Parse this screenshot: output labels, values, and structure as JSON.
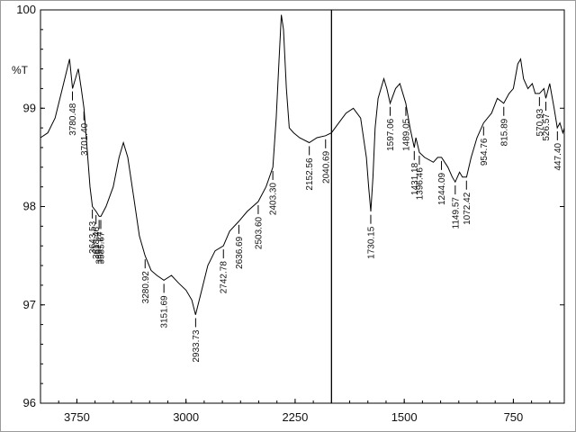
{
  "chart_data": {
    "type": "line",
    "title": "",
    "xlabel": "",
    "ylabel": "%T",
    "xlim": [
      4000,
      400
    ],
    "ylim": [
      96,
      100
    ],
    "x_ticks": [
      3750,
      3000,
      2250,
      1500,
      750
    ],
    "x_tick_labels": [
      "3750",
      "3000",
      "2250",
      "1500",
      "750"
    ],
    "y_ticks": [
      96,
      97,
      98,
      99,
      100
    ],
    "y_tick_labels": [
      "96",
      "97",
      "98",
      "99",
      "100"
    ],
    "grid": false,
    "cursor_x": 2000,
    "series": [
      {
        "values": [
          [
            4000,
            98.7
          ],
          [
            3950,
            98.75
          ],
          [
            3900,
            98.9
          ],
          [
            3850,
            99.2
          ],
          [
            3800,
            99.5
          ],
          [
            3780,
            99.2
          ],
          [
            3760,
            99.3
          ],
          [
            3740,
            99.4
          ],
          [
            3720,
            99.2
          ],
          [
            3701,
            99.0
          ],
          [
            3680,
            98.6
          ],
          [
            3660,
            98.2
          ],
          [
            3643,
            98.0
          ],
          [
            3618,
            97.95
          ],
          [
            3597,
            97.9
          ],
          [
            3585,
            97.9
          ],
          [
            3550,
            98.0
          ],
          [
            3500,
            98.2
          ],
          [
            3460,
            98.5
          ],
          [
            3430,
            98.65
          ],
          [
            3400,
            98.5
          ],
          [
            3360,
            98.1
          ],
          [
            3320,
            97.7
          ],
          [
            3281,
            97.5
          ],
          [
            3240,
            97.35
          ],
          [
            3200,
            97.3
          ],
          [
            3152,
            97.25
          ],
          [
            3100,
            97.3
          ],
          [
            3050,
            97.22
          ],
          [
            3000,
            97.15
          ],
          [
            2960,
            97.05
          ],
          [
            2934,
            96.9
          ],
          [
            2900,
            97.1
          ],
          [
            2850,
            97.4
          ],
          [
            2800,
            97.55
          ],
          [
            2743,
            97.6
          ],
          [
            2700,
            97.75
          ],
          [
            2637,
            97.85
          ],
          [
            2580,
            97.95
          ],
          [
            2504,
            98.05
          ],
          [
            2450,
            98.2
          ],
          [
            2403,
            98.4
          ],
          [
            2380,
            98.9
          ],
          [
            2360,
            99.5
          ],
          [
            2345,
            99.95
          ],
          [
            2330,
            99.8
          ],
          [
            2310,
            99.2
          ],
          [
            2290,
            98.8
          ],
          [
            2260,
            98.75
          ],
          [
            2220,
            98.7
          ],
          [
            2153,
            98.65
          ],
          [
            2100,
            98.7
          ],
          [
            2041,
            98.72
          ],
          [
            2000,
            98.75
          ],
          [
            1950,
            98.85
          ],
          [
            1900,
            98.95
          ],
          [
            1850,
            99.0
          ],
          [
            1800,
            98.9
          ],
          [
            1760,
            98.5
          ],
          [
            1745,
            98.2
          ],
          [
            1730,
            97.95
          ],
          [
            1715,
            98.3
          ],
          [
            1700,
            98.8
          ],
          [
            1680,
            99.1
          ],
          [
            1660,
            99.2
          ],
          [
            1640,
            99.3
          ],
          [
            1620,
            99.2
          ],
          [
            1597,
            99.05
          ],
          [
            1560,
            99.2
          ],
          [
            1530,
            99.25
          ],
          [
            1489,
            99.05
          ],
          [
            1460,
            98.8
          ],
          [
            1431,
            98.6
          ],
          [
            1420,
            98.7
          ],
          [
            1396,
            98.55
          ],
          [
            1360,
            98.5
          ],
          [
            1300,
            98.45
          ],
          [
            1270,
            98.5
          ],
          [
            1244,
            98.5
          ],
          [
            1200,
            98.4
          ],
          [
            1170,
            98.3
          ],
          [
            1150,
            98.25
          ],
          [
            1120,
            98.35
          ],
          [
            1100,
            98.3
          ],
          [
            1072,
            98.3
          ],
          [
            1040,
            98.5
          ],
          [
            1000,
            98.7
          ],
          [
            955,
            98.85
          ],
          [
            900,
            98.95
          ],
          [
            860,
            99.1
          ],
          [
            816,
            99.05
          ],
          [
            780,
            99.15
          ],
          [
            750,
            99.2
          ],
          [
            720,
            99.45
          ],
          [
            700,
            99.5
          ],
          [
            680,
            99.3
          ],
          [
            650,
            99.2
          ],
          [
            620,
            99.25
          ],
          [
            600,
            99.15
          ],
          [
            571,
            99.15
          ],
          [
            540,
            99.2
          ],
          [
            527,
            99.1
          ],
          [
            500,
            99.25
          ],
          [
            470,
            99.0
          ],
          [
            448,
            98.8
          ],
          [
            430,
            98.85
          ],
          [
            410,
            98.75
          ],
          [
            400,
            98.8
          ]
        ]
      }
    ],
    "annotations": [
      {
        "x": 3780.48,
        "label": "3780.48"
      },
      {
        "x": 3701.4,
        "label": "3701.40"
      },
      {
        "x": 3643.53,
        "label": "3643.53"
      },
      {
        "x": 3618.46,
        "label": "3618.46"
      },
      {
        "x": 3597.24,
        "label": "3597.24"
      },
      {
        "x": 3585.67,
        "label": "3585.67"
      },
      {
        "x": 3280.92,
        "label": "3280.92"
      },
      {
        "x": 3151.69,
        "label": "3151.69"
      },
      {
        "x": 2933.73,
        "label": "2933.73"
      },
      {
        "x": 2742.78,
        "label": "2742.78"
      },
      {
        "x": 2636.69,
        "label": "2636.69"
      },
      {
        "x": 2503.6,
        "label": "2503.60"
      },
      {
        "x": 2403.3,
        "label": "2403.30"
      },
      {
        "x": 2152.56,
        "label": "2152.56"
      },
      {
        "x": 2040.69,
        "label": "2040.69"
      },
      {
        "x": 1730.15,
        "label": "1730.15"
      },
      {
        "x": 1597.06,
        "label": "1597.06"
      },
      {
        "x": 1489.05,
        "label": "1489.05"
      },
      {
        "x": 1431.18,
        "label": "1431.18"
      },
      {
        "x": 1396.46,
        "label": "1396.46"
      },
      {
        "x": 1244.09,
        "label": "1244.09"
      },
      {
        "x": 1149.57,
        "label": "1149.57"
      },
      {
        "x": 1072.42,
        "label": "1072.42"
      },
      {
        "x": 954.76,
        "label": "954.76"
      },
      {
        "x": 815.89,
        "label": "815.89"
      },
      {
        "x": 570.93,
        "label": "570.93"
      },
      {
        "x": 526.57,
        "label": "526.57"
      },
      {
        "x": 447.4,
        "label": "447.40"
      }
    ]
  }
}
